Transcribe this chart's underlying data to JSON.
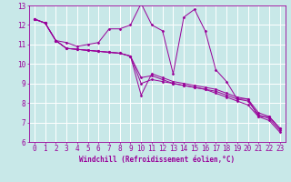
{
  "background_color": "#c8e8e8",
  "line_color": "#990099",
  "marker_color": "#990099",
  "grid_color": "#ffffff",
  "xlabel": "Windchill (Refroidissement éolien,°C)",
  "xlabel_fontsize": 5.5,
  "xlim": [
    -0.5,
    23.5
  ],
  "ylim": [
    6,
    13
  ],
  "xticks": [
    0,
    1,
    2,
    3,
    4,
    5,
    6,
    7,
    8,
    9,
    10,
    11,
    12,
    13,
    14,
    15,
    16,
    17,
    18,
    19,
    20,
    21,
    22,
    23
  ],
  "yticks": [
    6,
    7,
    8,
    9,
    10,
    11,
    12,
    13
  ],
  "tick_fontsize": 5.5,
  "series": [
    [
      12.3,
      12.1,
      11.2,
      11.1,
      10.9,
      11.0,
      11.1,
      11.8,
      11.8,
      12.0,
      13.1,
      12.0,
      11.7,
      9.5,
      12.4,
      12.8,
      11.7,
      9.7,
      9.1,
      8.2,
      8.2,
      7.3,
      7.3,
      6.7
    ],
    [
      12.3,
      12.1,
      11.2,
      10.8,
      10.75,
      10.7,
      10.65,
      10.6,
      10.55,
      10.4,
      8.4,
      9.5,
      9.3,
      9.1,
      9.0,
      8.9,
      8.8,
      8.7,
      8.5,
      8.3,
      8.2,
      7.5,
      7.3,
      6.7
    ],
    [
      12.3,
      12.1,
      11.2,
      10.8,
      10.75,
      10.7,
      10.65,
      10.6,
      10.55,
      10.4,
      9.0,
      9.2,
      9.1,
      9.0,
      8.9,
      8.8,
      8.7,
      8.6,
      8.4,
      8.2,
      8.1,
      7.4,
      7.2,
      6.6
    ],
    [
      12.3,
      12.1,
      11.2,
      10.8,
      10.75,
      10.7,
      10.65,
      10.6,
      10.55,
      10.4,
      9.3,
      9.4,
      9.2,
      9.0,
      8.9,
      8.8,
      8.7,
      8.5,
      8.3,
      8.1,
      7.9,
      7.3,
      7.1,
      6.5
    ]
  ]
}
